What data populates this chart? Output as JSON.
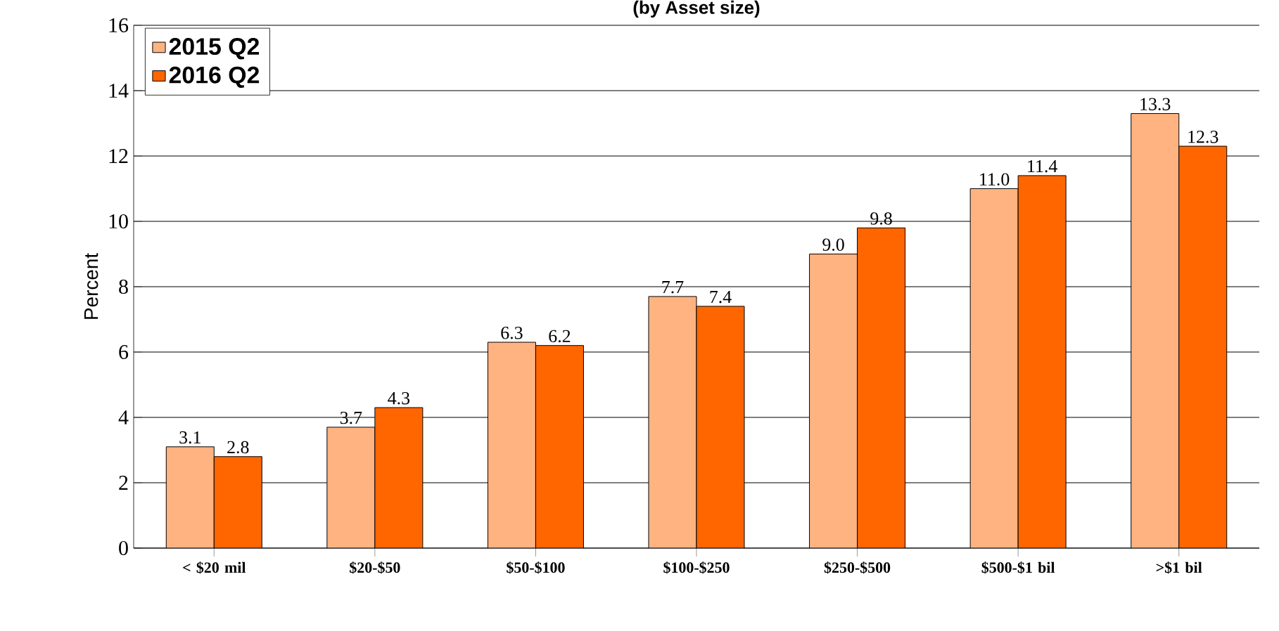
{
  "chart_data": {
    "type": "bar",
    "title": "(by Asset size)",
    "ylabel": "Percent",
    "categories": [
      "< $20 mil",
      "$20-$50",
      "$50-$100",
      "$100-$250",
      "$250-$500",
      "$500-$1 bil",
      ">$1 bil"
    ],
    "series": [
      {
        "name": "2015 Q2",
        "color": "#ffb380",
        "values": [
          3.1,
          3.7,
          6.3,
          7.7,
          9.0,
          11.0,
          13.3
        ],
        "value_labels": [
          "3.1",
          "3.7",
          "6.3",
          "7.7",
          "9.0",
          "11.0",
          "13.3"
        ]
      },
      {
        "name": "2016 Q2",
        "color": "#ff6600",
        "values": [
          2.8,
          4.3,
          6.2,
          7.4,
          9.8,
          11.4,
          12.3
        ],
        "value_labels": [
          "2.8",
          "4.3",
          "6.2",
          "7.4",
          "9.8",
          "11.4",
          "12.3"
        ]
      }
    ],
    "ylim": [
      0,
      16
    ],
    "yticks": [
      0,
      2,
      4,
      6,
      8,
      10,
      12,
      14,
      16
    ],
    "grid": "y",
    "legend": "top left"
  }
}
